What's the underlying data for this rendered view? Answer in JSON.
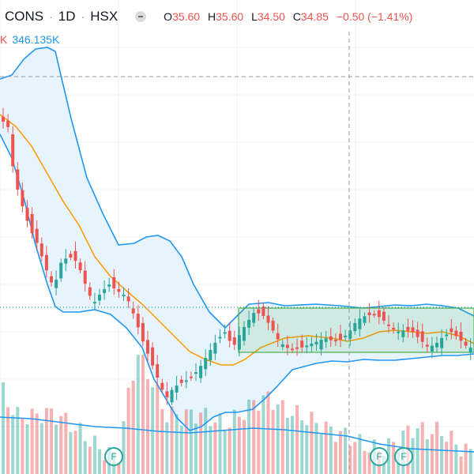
{
  "header": {
    "symbol": "CONS",
    "interval": "1D",
    "exchange": "HSX",
    "separator": "·",
    "ohlc": {
      "open_label": "O",
      "open": "35.60",
      "high_label": "H",
      "high": "35.60",
      "low_label": "L",
      "low": "34.50",
      "close_label": "C",
      "close": "34.85",
      "change": "−0.50 (−1.41%)"
    }
  },
  "volume": {
    "label": "K",
    "value": "346.135K"
  },
  "events": [
    {
      "label": "F"
    },
    {
      "label": "F"
    },
    {
      "label": "F"
    }
  ],
  "colors": {
    "up": "#26a69a",
    "down": "#ef5350",
    "band_line": "#2196f3",
    "band_fill": "#e3f2fd",
    "ma_line": "#ff9800",
    "range_box": "#4caf50",
    "crosshair": "#9598a1"
  },
  "chart_data": {
    "type": "candlestick",
    "indicators": [
      "bollinger-bands",
      "moving-average",
      "volume",
      "volume-moving-average"
    ],
    "last_close": 34.85,
    "crosshair_price_line": "dashed horizontal",
    "highlight_range": "consolidation rectangle"
  }
}
